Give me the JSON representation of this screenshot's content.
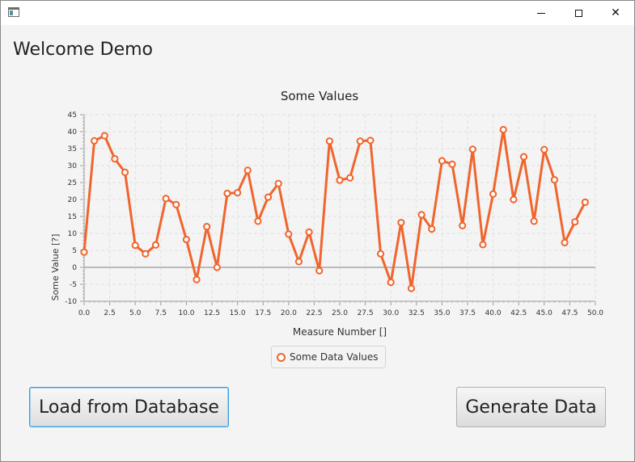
{
  "window": {
    "title": ""
  },
  "header": {
    "title": "Welcome Demo"
  },
  "buttons": {
    "load": "Load from Database",
    "generate": "Generate Data"
  },
  "icons": {
    "minimize": "minimize-icon",
    "maximize": "maximize-icon",
    "close": "close-icon",
    "app": "app-window-icon"
  },
  "colors": {
    "series": "#f0652d",
    "zero_line": "#808080"
  },
  "chart_data": {
    "type": "line",
    "title": "Some Values",
    "xlabel": "Measure Number []",
    "ylabel": "Some Value [?]",
    "xlim": [
      0,
      50
    ],
    "ylim": [
      -10,
      45
    ],
    "x_ticks": [
      "0.0",
      "2.5",
      "5.0",
      "7.5",
      "10.0",
      "12.5",
      "15.0",
      "17.5",
      "20.0",
      "22.5",
      "25.0",
      "27.5",
      "30.0",
      "32.5",
      "35.0",
      "37.5",
      "40.0",
      "42.5",
      "45.0",
      "47.5",
      "50.0"
    ],
    "y_ticks": [
      "-10",
      "-5",
      "0",
      "5",
      "10",
      "15",
      "20",
      "25",
      "30",
      "35",
      "40",
      "45"
    ],
    "grid": true,
    "legend": "bottom-center",
    "series": [
      {
        "name": "Some Data Values",
        "x": [
          0,
          1,
          2,
          3,
          4,
          5,
          6,
          7,
          8,
          9,
          10,
          11,
          12,
          13,
          14,
          15,
          16,
          17,
          18,
          19,
          20,
          21,
          22,
          23,
          24,
          25,
          26,
          27,
          28,
          29,
          30,
          31,
          32,
          33,
          34,
          35,
          36,
          37,
          38,
          39,
          40,
          41,
          42,
          43,
          44,
          45,
          46,
          47,
          48,
          49
        ],
        "y": [
          4.5,
          37.3,
          38.8,
          32,
          28,
          6.5,
          4,
          6.6,
          20.3,
          18.5,
          8.2,
          -3.6,
          12,
          0,
          21.8,
          22,
          28.6,
          13.6,
          20.7,
          24.7,
          9.8,
          1.7,
          10.4,
          -1,
          37.2,
          25.7,
          26.4,
          37.2,
          37.4,
          4,
          -4.4,
          13.2,
          -6.2,
          15.5,
          11.3,
          31.4,
          30.4,
          12.3,
          34.8,
          6.7,
          21.6,
          40.6,
          20,
          32.6,
          13.6,
          34.7,
          25.8,
          7.3,
          13.4,
          19.2
        ]
      }
    ]
  }
}
